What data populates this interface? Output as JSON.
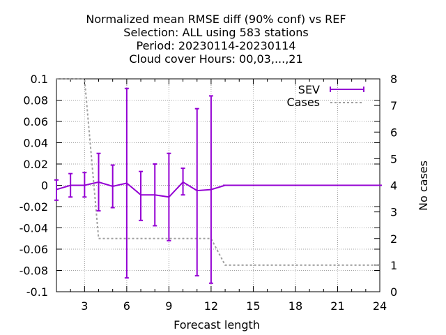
{
  "chart_data": {
    "type": "line",
    "title_lines": [
      "Normalized mean RMSE diff (90% conf) vs REF",
      "Selection: ALL using   583 stations",
      "Period: 20230114-20230114",
      "Cloud cover   Hours:  00,03,...,21"
    ],
    "xlabel": "Forecast length",
    "ylabel": "",
    "y2label": "No cases",
    "xlim": [
      1,
      24
    ],
    "ylim": [
      -0.1,
      0.1
    ],
    "y2lim": [
      0,
      8
    ],
    "x_ticks": [
      3,
      6,
      9,
      12,
      15,
      18,
      21,
      24
    ],
    "y_ticks": [
      -0.1,
      -0.08,
      -0.06,
      -0.04,
      -0.02,
      0,
      0.02,
      0.04,
      0.06,
      0.08,
      0.1
    ],
    "y_tick_labels": [
      "-0.1",
      "-0.08",
      "-0.06",
      "-0.04",
      "-0.02",
      "0",
      "0.02",
      "0.04",
      "0.06",
      "0.08",
      "0.1"
    ],
    "y2_ticks": [
      0,
      1,
      2,
      3,
      4,
      5,
      6,
      7,
      8
    ],
    "grid": true,
    "legend_position": "top-right",
    "series": [
      {
        "name": "SEV",
        "color": "#9400d3",
        "style": "line-errorbars",
        "x": [
          1,
          2,
          3,
          4,
          5,
          6,
          7,
          8,
          9,
          10,
          11,
          12,
          13,
          14,
          15,
          16,
          17,
          18,
          19,
          20,
          21,
          22,
          23,
          24
        ],
        "y": [
          -0.004,
          0.0,
          0.0,
          0.003,
          -0.001,
          0.002,
          -0.009,
          -0.009,
          -0.011,
          0.003,
          -0.005,
          -0.004,
          0,
          0,
          0,
          0,
          0,
          0,
          0,
          0,
          0,
          0,
          0,
          0
        ],
        "err_low": [
          -0.014,
          -0.011,
          -0.011,
          -0.024,
          -0.021,
          -0.087,
          -0.033,
          -0.038,
          -0.052,
          -0.009,
          -0.085,
          -0.092,
          0,
          0,
          0,
          0,
          0,
          0,
          0,
          0,
          0,
          0,
          0,
          0
        ],
        "err_high": [
          0.005,
          0.011,
          0.012,
          0.03,
          0.019,
          0.091,
          0.013,
          0.02,
          0.03,
          0.016,
          0.072,
          0.084,
          0,
          0,
          0,
          0,
          0,
          0,
          0,
          0,
          0,
          0,
          0,
          0
        ]
      },
      {
        "name": "Cases",
        "color": "#a0a0a0",
        "style": "dashed-step",
        "axis": "y2",
        "x": [
          1,
          3,
          4,
          12,
          13,
          24
        ],
        "y": [
          8,
          8,
          2,
          2,
          1,
          1
        ]
      }
    ]
  }
}
